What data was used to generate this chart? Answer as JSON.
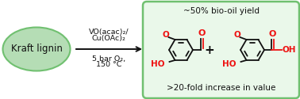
{
  "bg_color": "#ffffff",
  "ellipse_fill": "#b5ddb5",
  "ellipse_edge": "#70c070",
  "box_fill": "#eaf8ea",
  "box_edge": "#70c070",
  "kraft_text": "Kraft lignin",
  "catalyst_lines": [
    "VO(acac)₂/",
    "Cu(OAc)₂",
    "5 bar O₂,",
    "150 °C"
  ],
  "top_label": "~50% bio-oil yield",
  "bottom_label": ">20-fold increase in value",
  "red_color": "#ee1111",
  "black_color": "#111111",
  "font_size_kraft": 8.5,
  "font_size_catalyst": 6.8,
  "font_size_label": 7.5,
  "fig_width": 3.78,
  "fig_height": 1.25,
  "dpi": 100
}
